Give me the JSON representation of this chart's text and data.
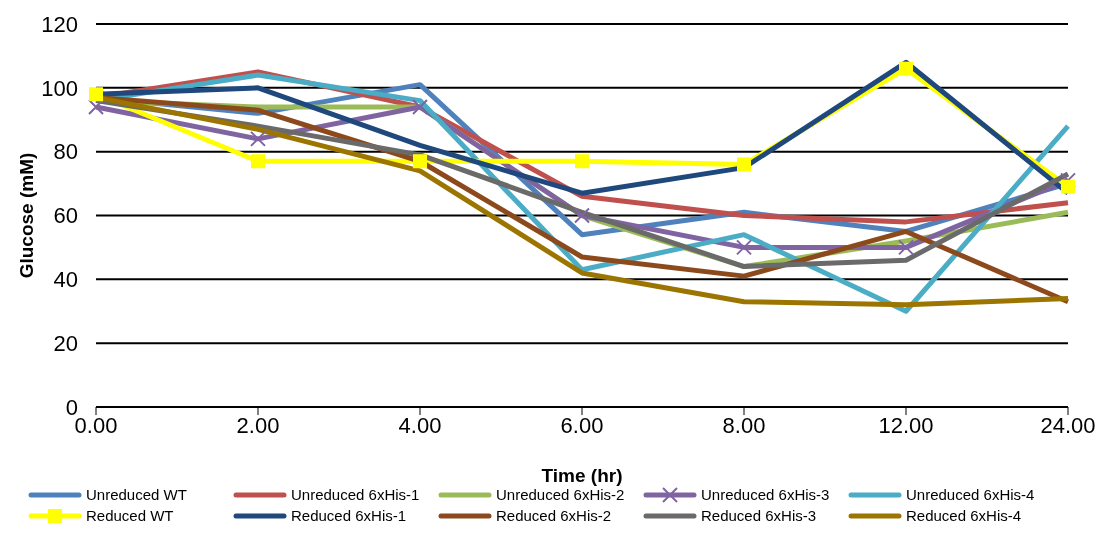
{
  "chart_data": {
    "type": "line",
    "xlabel": "Time (hr)",
    "ylabel": "Glucose (mM)",
    "categories": [
      "0.00",
      "2.00",
      "4.00",
      "6.00",
      "8.00",
      "12.00",
      "24.00"
    ],
    "ylim": [
      0,
      120
    ],
    "yticks": [
      0,
      20,
      40,
      60,
      80,
      100,
      120
    ],
    "grid": "y",
    "legend": "bottom",
    "marker": "none",
    "line_style": "solid",
    "series": [
      {
        "name": "Unreduced WT",
        "color": "#4f81bd",
        "values": [
          97,
          92,
          101,
          54,
          61,
          55,
          70
        ]
      },
      {
        "name": "Unreduced 6xHis-1",
        "color": "#c0504d",
        "values": [
          97,
          105,
          94,
          66,
          60,
          58,
          64
        ]
      },
      {
        "name": "Unreduced 6xHis-2",
        "color": "#9bbb59",
        "values": [
          96,
          94,
          94,
          60,
          44,
          52,
          61
        ]
      },
      {
        "name": "Unreduced 6xHis-3",
        "color": "#8064a2",
        "marker": "cross",
        "values": [
          94,
          84,
          94,
          60,
          50,
          50,
          71
        ]
      },
      {
        "name": "Unreduced 6xHis-4",
        "color": "#4bacc6",
        "values": [
          96,
          104,
          96,
          43,
          54,
          30,
          88
        ]
      },
      {
        "name": "Reduced WT",
        "color": "#ffff00",
        "marker": "square",
        "values": [
          98,
          77,
          77,
          77,
          76,
          106,
          69
        ]
      },
      {
        "name": "Reduced 6xHis-1",
        "color": "#1f497d",
        "values": [
          98,
          100,
          82,
          67,
          75,
          108,
          67
        ]
      },
      {
        "name": "Reduced 6xHis-2",
        "color": "#8c4a1c",
        "values": [
          97,
          93,
          77,
          47,
          41,
          55,
          33
        ]
      },
      {
        "name": "Reduced 6xHis-3",
        "color": "#6a6a6a",
        "values": [
          96,
          88,
          79,
          61,
          44,
          46,
          73
        ]
      },
      {
        "name": "Reduced 6xHis-4",
        "color": "#9c7400",
        "values": [
          97,
          87,
          74,
          42,
          33,
          32,
          34
        ]
      }
    ]
  }
}
